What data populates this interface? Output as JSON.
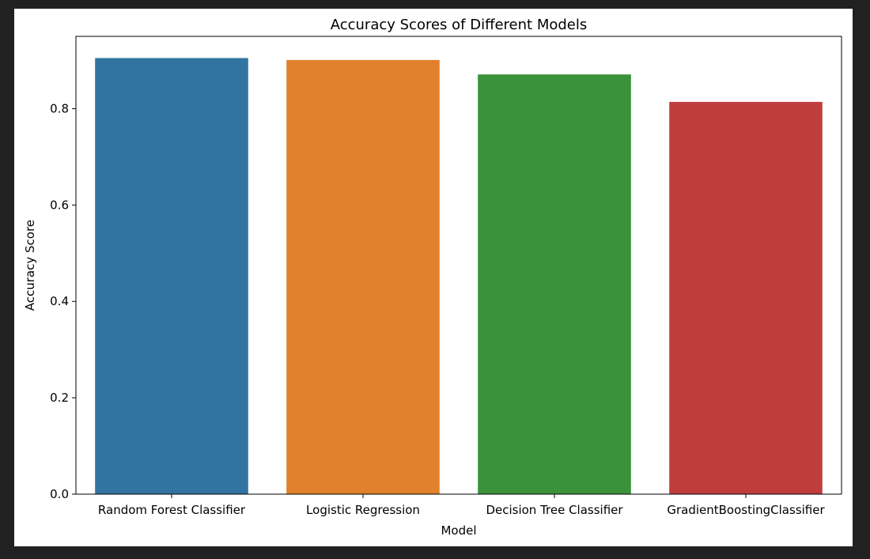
{
  "chart_data": {
    "type": "bar",
    "title": "Accuracy Scores of Different Models",
    "xlabel": "Model",
    "ylabel": "Accuracy Score",
    "categories": [
      "Random Forest Classifier",
      "Logistic Regression",
      "Decision Tree Classifier",
      "GradientBoostingClassifier"
    ],
    "values": [
      0.905,
      0.901,
      0.871,
      0.814
    ],
    "colors": [
      "#3274a1",
      "#e1812c",
      "#3a923a",
      "#c03d3e"
    ],
    "yticks": [
      "0.0",
      "0.2",
      "0.4",
      "0.6",
      "0.8"
    ],
    "ylim": [
      0,
      0.95
    ],
    "grid": false,
    "legend": "none"
  }
}
